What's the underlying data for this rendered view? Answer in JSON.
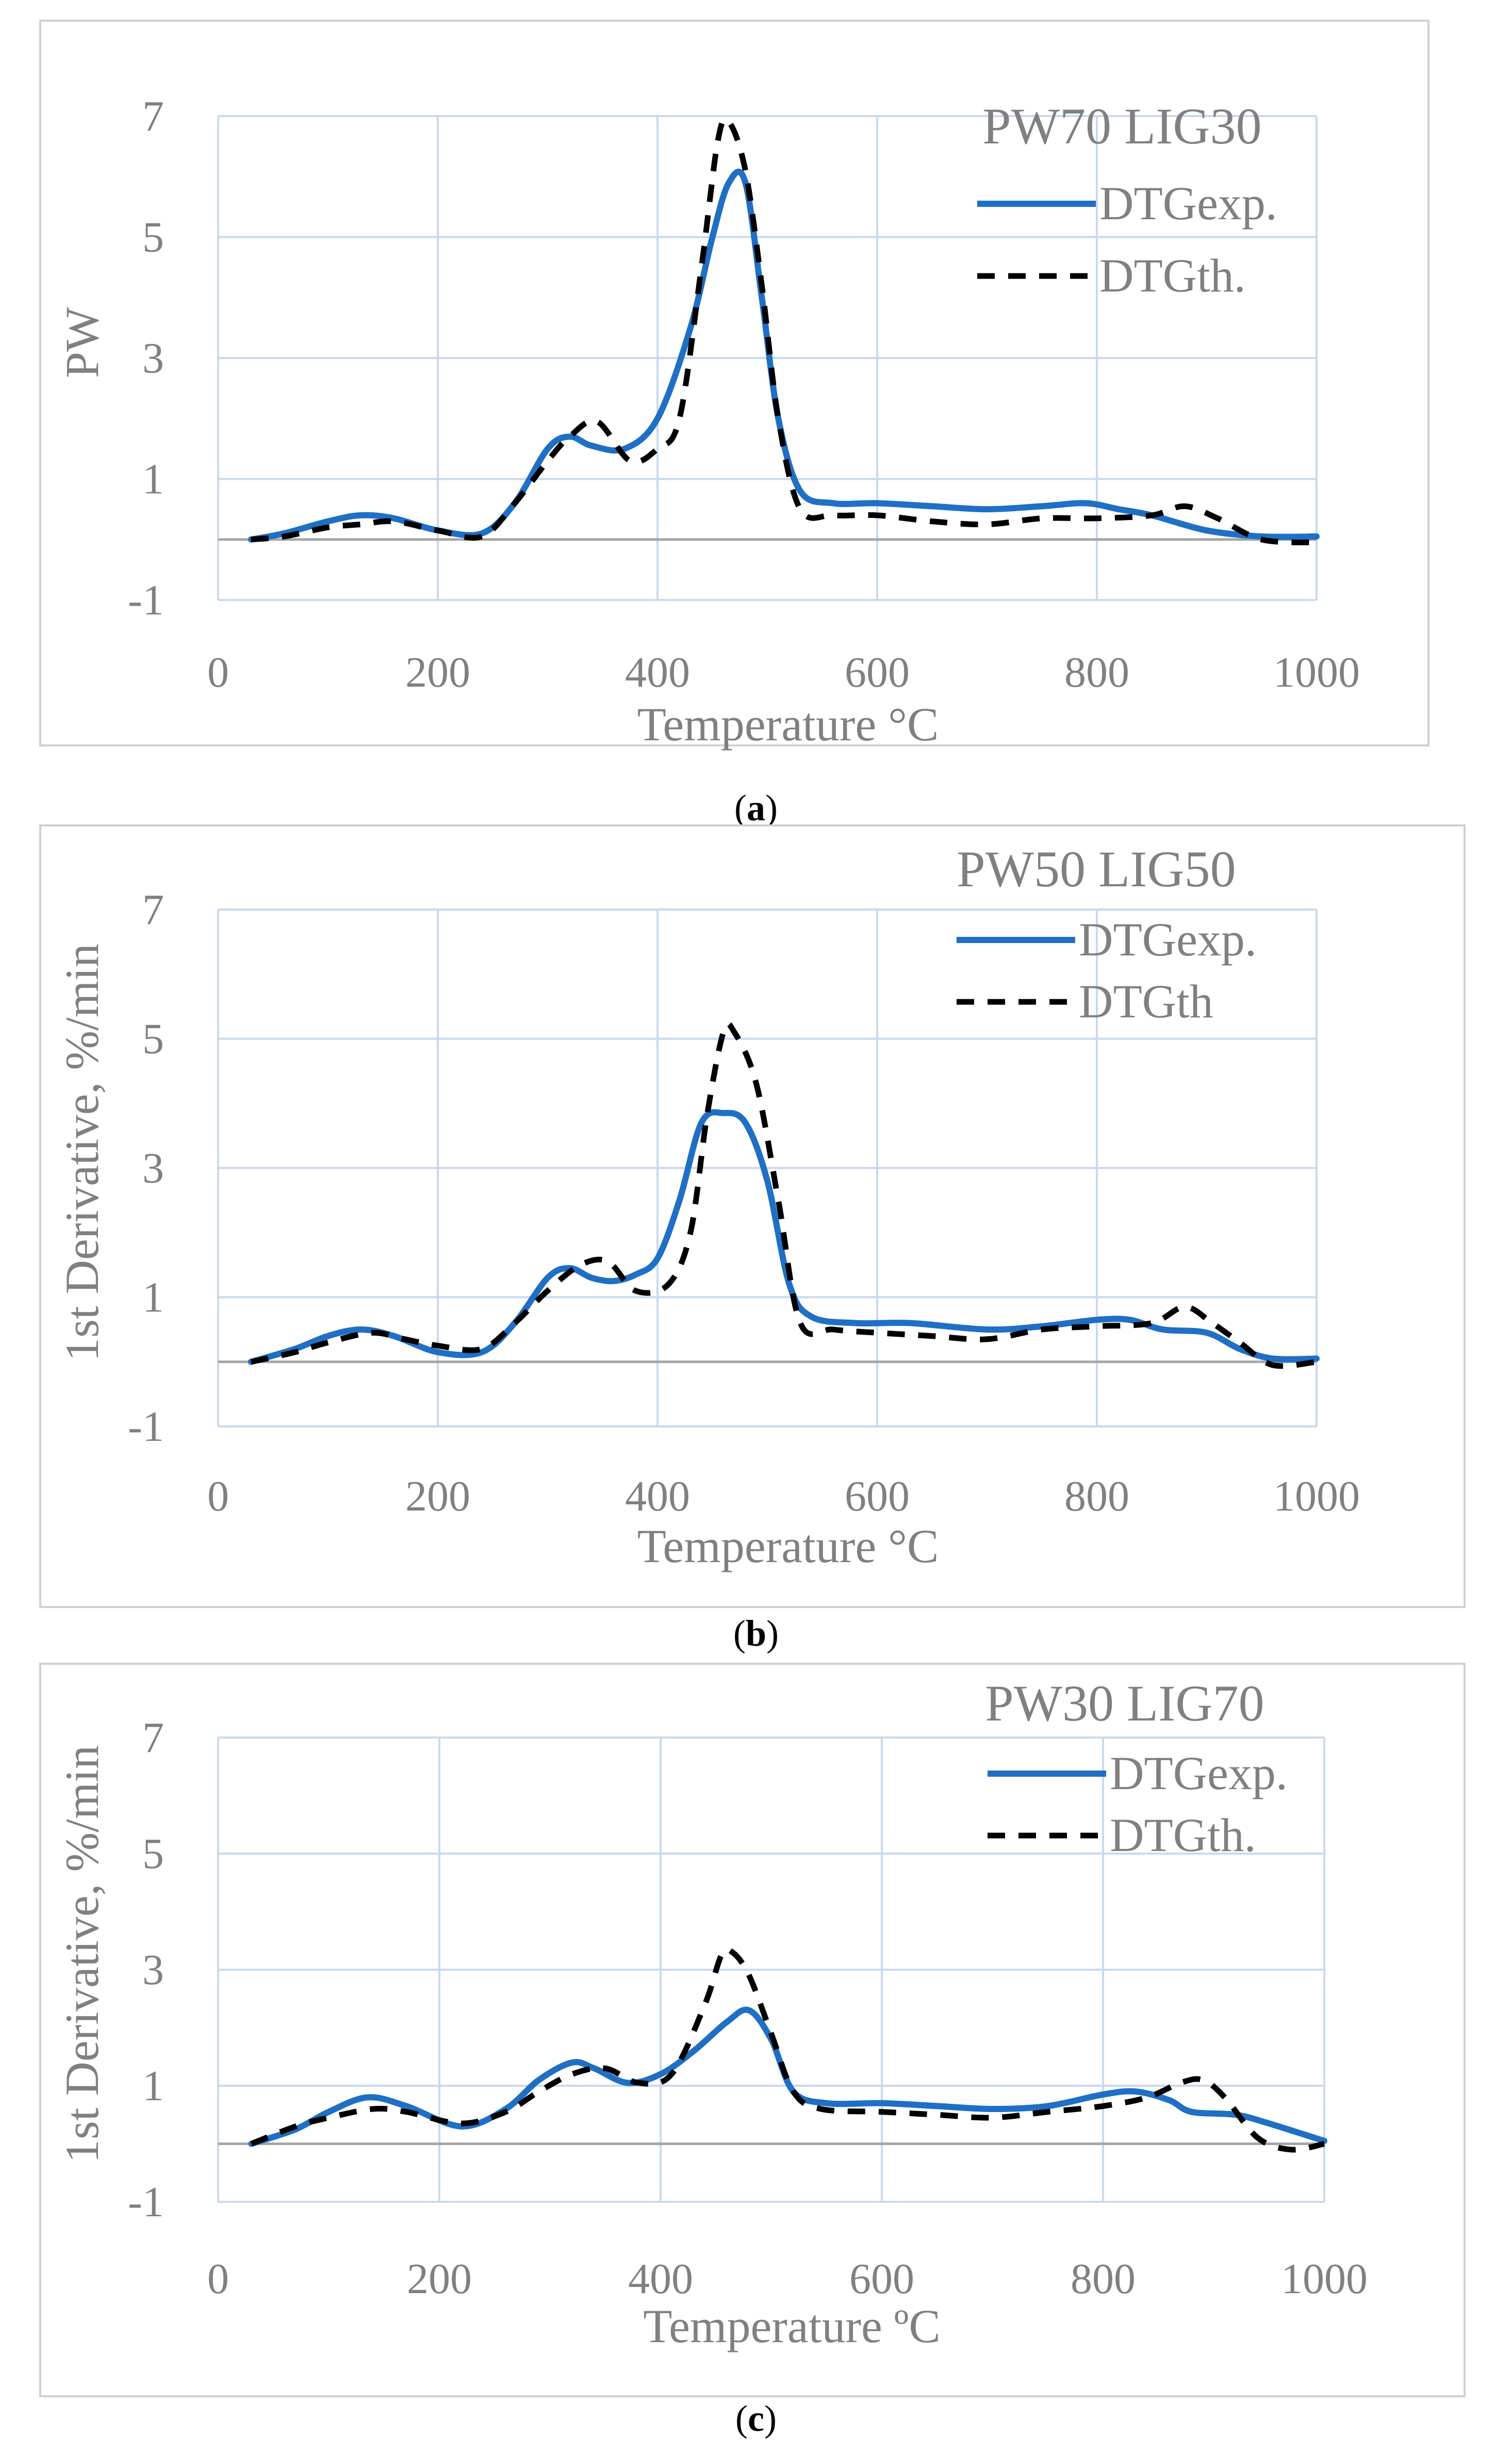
{
  "colors": {
    "exp": "#1f6fc5",
    "th": "#000000",
    "grid": "#c9d9ee",
    "zero_line": "#a6a6a6",
    "axis_text": "#808080",
    "frame": "#d0d0d0"
  },
  "chart_data": [
    {
      "type": "line",
      "caption": "a",
      "title": "PW70 LIG30",
      "xlabel": "Temperature °C",
      "ylabel": "PW",
      "xlim": [
        0,
        1000
      ],
      "ylim": [
        -1,
        7
      ],
      "xticks": [
        0,
        200,
        400,
        600,
        800,
        1000
      ],
      "yticks": [
        -1,
        1,
        3,
        5,
        7
      ],
      "grid": true,
      "legend": "top-right",
      "series": [
        {
          "name": "DTGexp.",
          "style": "solid",
          "x": [
            30,
            60,
            100,
            130,
            160,
            200,
            240,
            270,
            300,
            320,
            340,
            370,
            400,
            430,
            450,
            465,
            480,
            495,
            510,
            530,
            560,
            600,
            650,
            700,
            750,
            790,
            820,
            850,
            900,
            950,
            1000
          ],
          "y": [
            0,
            0.1,
            0.3,
            0.4,
            0.35,
            0.15,
            0.1,
            0.6,
            1.5,
            1.7,
            1.55,
            1.5,
            2,
            3.5,
            5,
            5.9,
            5.9,
            4,
            2,
            0.8,
            0.6,
            0.6,
            0.55,
            0.5,
            0.55,
            0.6,
            0.5,
            0.4,
            0.15,
            0.05,
            0.05
          ]
        },
        {
          "name": "DTGth.",
          "style": "dashed",
          "x": [
            30,
            60,
            100,
            130,
            160,
            200,
            240,
            270,
            300,
            320,
            345,
            375,
            400,
            420,
            440,
            455,
            465,
            480,
            495,
            510,
            530,
            560,
            600,
            650,
            700,
            750,
            800,
            850,
            880,
            910,
            950,
            1000
          ],
          "y": [
            0,
            0.05,
            0.2,
            0.25,
            0.3,
            0.15,
            0.05,
            0.6,
            1.3,
            1.7,
            1.95,
            1.3,
            1.5,
            2,
            4.5,
            6.6,
            6.9,
            6.1,
            4.2,
            2,
            0.5,
            0.4,
            0.4,
            0.3,
            0.25,
            0.35,
            0.35,
            0.4,
            0.55,
            0.35,
            0,
            -0.05
          ]
        }
      ]
    },
    {
      "type": "line",
      "caption": "b",
      "title": "PW50 LIG50",
      "xlabel": "Temperature °C",
      "ylabel": "1st Derivative, %/min",
      "xlim": [
        0,
        1000
      ],
      "ylim": [
        -1,
        7
      ],
      "xticks": [
        0,
        200,
        400,
        600,
        800,
        1000
      ],
      "yticks": [
        -1,
        1,
        3,
        5,
        7
      ],
      "grid": true,
      "legend": "top-right",
      "series": [
        {
          "name": "DTGexp.",
          "style": "solid",
          "x": [
            30,
            70,
            100,
            130,
            160,
            200,
            240,
            270,
            300,
            320,
            340,
            360,
            380,
            400,
            420,
            440,
            460,
            480,
            500,
            520,
            540,
            580,
            630,
            700,
            750,
            800,
            830,
            860,
            900,
            930,
            960,
            1000
          ],
          "y": [
            0,
            0.2,
            0.4,
            0.5,
            0.4,
            0.15,
            0.15,
            0.6,
            1.3,
            1.45,
            1.3,
            1.25,
            1.35,
            1.6,
            2.5,
            3.7,
            3.85,
            3.7,
            2.8,
            1.2,
            0.7,
            0.6,
            0.6,
            0.5,
            0.55,
            0.65,
            0.65,
            0.5,
            0.45,
            0.2,
            0.05,
            0.05
          ]
        },
        {
          "name": "DTGth",
          "style": "dashed",
          "x": [
            30,
            70,
            100,
            140,
            170,
            200,
            240,
            270,
            300,
            330,
            355,
            380,
            410,
            430,
            445,
            460,
            470,
            490,
            510,
            530,
            560,
            600,
            650,
            700,
            750,
            800,
            850,
            880,
            905,
            930,
            960,
            1000
          ],
          "y": [
            0,
            0.15,
            0.3,
            0.45,
            0.35,
            0.25,
            0.2,
            0.6,
            1.1,
            1.5,
            1.55,
            1.1,
            1.2,
            2,
            3.8,
            5.1,
            5.1,
            4.3,
            2.5,
            0.6,
            0.5,
            0.45,
            0.4,
            0.35,
            0.5,
            0.55,
            0.6,
            0.85,
            0.6,
            0.3,
            -0.05,
            0
          ]
        }
      ]
    },
    {
      "type": "line",
      "caption": "c",
      "title": "PW30 LIG70",
      "xlabel": "Temperature ºC",
      "ylabel": "1st Derivative, %/min",
      "xlim": [
        0,
        1000
      ],
      "ylim": [
        -1,
        7
      ],
      "xticks": [
        0,
        200,
        400,
        600,
        800,
        1000
      ],
      "yticks": [
        -1,
        1,
        3,
        5,
        7
      ],
      "grid": true,
      "legend": "top-right",
      "series": [
        {
          "name": "DTGexp.",
          "style": "solid",
          "x": [
            30,
            70,
            100,
            135,
            170,
            220,
            260,
            290,
            320,
            340,
            370,
            400,
            430,
            460,
            480,
            500,
            520,
            550,
            600,
            650,
            700,
            750,
            800,
            830,
            860,
            880,
            920,
            950,
            1000
          ],
          "y": [
            0,
            0.25,
            0.55,
            0.8,
            0.65,
            0.3,
            0.6,
            1.1,
            1.4,
            1.3,
            1.05,
            1.2,
            1.6,
            2.1,
            2.3,
            1.8,
            0.9,
            0.7,
            0.7,
            0.65,
            0.6,
            0.65,
            0.85,
            0.9,
            0.75,
            0.55,
            0.5,
            0.35,
            0.05
          ]
        },
        {
          "name": "DTGth.",
          "style": "dashed",
          "x": [
            30,
            70,
            100,
            140,
            170,
            220,
            260,
            290,
            320,
            350,
            380,
            410,
            440,
            455,
            465,
            480,
            500,
            520,
            545,
            600,
            650,
            700,
            750,
            800,
            840,
            870,
            890,
            910,
            940,
            970,
            1000
          ],
          "y": [
            0,
            0.3,
            0.45,
            0.6,
            0.55,
            0.35,
            0.55,
            0.9,
            1.2,
            1.3,
            1.05,
            1.2,
            2.4,
            3.25,
            3.3,
            2.9,
            1.9,
            0.9,
            0.6,
            0.55,
            0.5,
            0.45,
            0.55,
            0.65,
            0.8,
            1.05,
            1.1,
            0.8,
            0.1,
            -0.1,
            0
          ]
        }
      ]
    }
  ]
}
